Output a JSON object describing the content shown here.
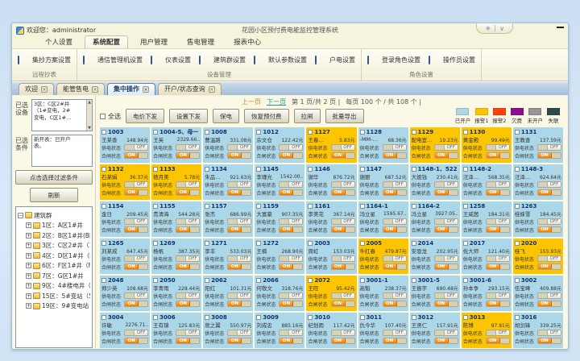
{
  "window": {
    "welcome": "欢迎您：administrator",
    "title": "花园小区预付费电能监控管理系统",
    "skin_glyph": "✳",
    "skin_arrow": "∨"
  },
  "menu": {
    "items": [
      "个人设置",
      "系统配置",
      "用户管理",
      "售电管理",
      "报表中心"
    ],
    "active_index": 1
  },
  "ribbon": {
    "groups": [
      {
        "label": "远程抄表",
        "buttons": [
          "集抄方案设置"
        ]
      },
      {
        "label": "设备管理",
        "buttons": [
          "通信管理机设置",
          "仪表设置",
          "建筑群设置",
          "默认参数设置",
          "户电设置"
        ]
      },
      {
        "label": "角色设置",
        "buttons": [
          "登录角色设置",
          "操作员设置"
        ]
      }
    ]
  },
  "doc_tabs": {
    "close_glyph": "×",
    "tabs": [
      "欢迎",
      "能管售电",
      "集中操作",
      "开户/状态查询"
    ],
    "active_index": 2
  },
  "sidebar": {
    "device_label": "已选设备",
    "device_lines": [
      "3区：C区2#井",
      "（1#变电，2#",
      "变电，C区1#…"
    ],
    "condition_label": "已选条件",
    "condition_lines": [
      "新开表：已开户",
      "表。"
    ],
    "filter_button": "点击选择过滤条件",
    "refresh_button": "刷新",
    "tree": {
      "root": "建筑群",
      "items": [
        "1区：A区1#井",
        "2区：B区1#井(B区1#",
        "3区：C区2#井（1#变",
        "4区：D区1#井（D区1",
        "6区：F区1#井（F区1#",
        "7区：G区1#井",
        "9区：4#楼电井（4#楼",
        "15区：5#变站（5#变",
        "19区：9#变电站（2#"
      ]
    }
  },
  "pagination": {
    "prev": "上一页",
    "next": "下一页",
    "page_info": "第 1 页/共 2 页 |",
    "per_page_info": "每页 100 个 / 共 108 个 |"
  },
  "toolbar": {
    "select_all": "全选",
    "buttons": [
      "电价下发",
      "设置下发",
      "保电",
      "恢复预付费",
      "拉闸",
      "批量导出"
    ]
  },
  "legend": {
    "items": [
      {
        "label": "已开户",
        "color": "#abd7e8"
      },
      {
        "label": "报警1",
        "color": "#fdc500"
      },
      {
        "label": "报警2",
        "color": "#ff4013"
      },
      {
        "label": "欠费",
        "color": "#8e0f8e"
      },
      {
        "label": "未开户",
        "color": "#969696"
      },
      {
        "label": "失联",
        "color": "#2e4a4a"
      }
    ]
  },
  "cards": {
    "supply_label": "供电状态",
    "switch_label": "合闸状态",
    "off_label": "OFF",
    "on_label": "ON",
    "items": [
      {
        "id": "1003",
        "name": "王某香",
        "amount": "148.94元",
        "status": "blue"
      },
      {
        "id": "1004-5、母一",
        "name": "王英",
        "amount": "2329.66..",
        "status": "blue"
      },
      {
        "id": "1008",
        "name": "曹温路",
        "amount": "331.08元",
        "status": "blue"
      },
      {
        "id": "1012",
        "name": "佘文仓",
        "amount": "122.42元",
        "status": "blue"
      },
      {
        "id": "1127",
        "name": "王春…",
        "amount": "5.83元",
        "status": "yellow"
      },
      {
        "id": "1128",
        "name": "-MM-…",
        "amount": "68.36元",
        "status": "blue"
      },
      {
        "id": "1129",
        "name": "配电室…",
        "amount": "19.23元",
        "status": "yellow"
      },
      {
        "id": "1130",
        "name": "黄金殿",
        "amount": "99.49元",
        "status": "yellow"
      },
      {
        "id": "1131",
        "name": "王教查",
        "amount": "137.59元",
        "status": "blue"
      },
      {
        "id": "1132",
        "name": "石某娟",
        "amount": "36.37元",
        "status": "yellow"
      },
      {
        "id": "1133",
        "name": "德月美",
        "amount": "5.78元",
        "status": "yellow"
      },
      {
        "id": "1134",
        "name": "朱品…",
        "amount": "921.63元",
        "status": "blue"
      },
      {
        "id": "1145",
        "name": "李瑾光",
        "amount": "1542.00..",
        "status": "blue"
      },
      {
        "id": "1146",
        "name": "谢华",
        "amount": "876.72元",
        "status": "blue"
      },
      {
        "id": "1147",
        "name": "谢丽",
        "amount": "687.52元",
        "status": "blue"
      },
      {
        "id": "1148-1、522",
        "name": "大姐钱",
        "amount": "230.41元",
        "status": "blue"
      },
      {
        "id": "1148-2",
        "name": "汪泽…",
        "amount": "568.35元",
        "status": "blue"
      },
      {
        "id": "1148-3",
        "name": "汪泽…",
        "amount": "624.64元",
        "status": "blue"
      },
      {
        "id": "1154",
        "name": "金日",
        "amount": "209.45元",
        "status": "blue"
      },
      {
        "id": "1155",
        "name": "贵清海",
        "amount": "544.28元",
        "status": "blue"
      },
      {
        "id": "1157",
        "name": "张杰",
        "amount": "686.99元",
        "status": "blue"
      },
      {
        "id": "1159",
        "name": "大富豪",
        "amount": "907.35元",
        "status": "blue"
      },
      {
        "id": "1161",
        "name": "李美花",
        "amount": "367.14元",
        "status": "blue"
      },
      {
        "id": "1164-1",
        "name": "冯立星",
        "amount": "1595.67..",
        "status": "blue"
      },
      {
        "id": "1164-2",
        "name": "冯立星",
        "amount": "3927.05..",
        "status": "blue"
      },
      {
        "id": "1258",
        "name": "王威茜",
        "amount": "184.31元",
        "status": "blue"
      },
      {
        "id": "1263",
        "name": "桂妹雪",
        "amount": "184.45元",
        "status": "blue"
      },
      {
        "id": "1265",
        "name": "刘某成",
        "amount": "647.45元",
        "status": "blue"
      },
      {
        "id": "1269",
        "name": "杨帆",
        "amount": "387.35元",
        "status": "blue"
      },
      {
        "id": "1271",
        "name": "李丰",
        "amount": "533.03元",
        "status": "blue"
      },
      {
        "id": "1272",
        "name": "王楠",
        "amount": "268.90元",
        "status": "blue"
      },
      {
        "id": "2003",
        "name": "周虹",
        "amount": "153.03元",
        "status": "blue"
      },
      {
        "id": "2005",
        "name": "牛红春",
        "amount": "479.87元",
        "status": "yellow"
      },
      {
        "id": "2014",
        "name": "安恩龙",
        "amount": "202.95元",
        "status": "blue"
      },
      {
        "id": "2017",
        "name": "佐大师",
        "amount": "121.40元",
        "status": "blue"
      },
      {
        "id": "2020",
        "name": "桂飞",
        "amount": "155.93元",
        "status": "yellow"
      },
      {
        "id": "2048",
        "name": "郑少英",
        "amount": "108.68元",
        "status": "blue"
      },
      {
        "id": "2050",
        "name": "李青雨",
        "amount": "228.44元",
        "status": "blue"
      },
      {
        "id": "2062",
        "name": "阳红",
        "amount": "101.31元",
        "status": "blue"
      },
      {
        "id": "2066",
        "name": "何敬文",
        "amount": "318.76元",
        "status": "blue"
      },
      {
        "id": "2072",
        "name": "王旺",
        "amount": "95.42元",
        "status": "yellow"
      },
      {
        "id": "3001-1",
        "name": "高魁",
        "amount": "238.37元",
        "status": "blue"
      },
      {
        "id": "3001-5",
        "name": "王振宇",
        "amount": "690.48元",
        "status": "blue"
      },
      {
        "id": "3001-6",
        "name": "孙本争",
        "amount": "293.15元",
        "status": "blue"
      },
      {
        "id": "3002",
        "name": "伍宝峰",
        "amount": "409.88元",
        "status": "blue"
      },
      {
        "id": "3004",
        "name": "许敏",
        "amount": "2276.71..",
        "status": "blue"
      },
      {
        "id": "3006",
        "name": "王有锦",
        "amount": "125.83元",
        "status": "blue"
      },
      {
        "id": "3008",
        "name": "席之翼",
        "amount": "550.97元",
        "status": "blue"
      },
      {
        "id": "3009",
        "name": "刘成忠",
        "amount": "885.16元",
        "status": "blue"
      },
      {
        "id": "3010",
        "name": "纪划雨",
        "amount": "117.42元",
        "status": "blue"
      },
      {
        "id": "3011",
        "name": "仇今华",
        "amount": "107.40元",
        "status": "blue"
      },
      {
        "id": "3012",
        "name": "王贤仁",
        "amount": "157.91元",
        "status": "blue"
      },
      {
        "id": "3013",
        "name": "陈博",
        "amount": "97.91元",
        "status": "yellow"
      },
      {
        "id": "3016",
        "name": "胡剑锋",
        "amount": "339.25元",
        "status": "blue"
      }
    ]
  }
}
